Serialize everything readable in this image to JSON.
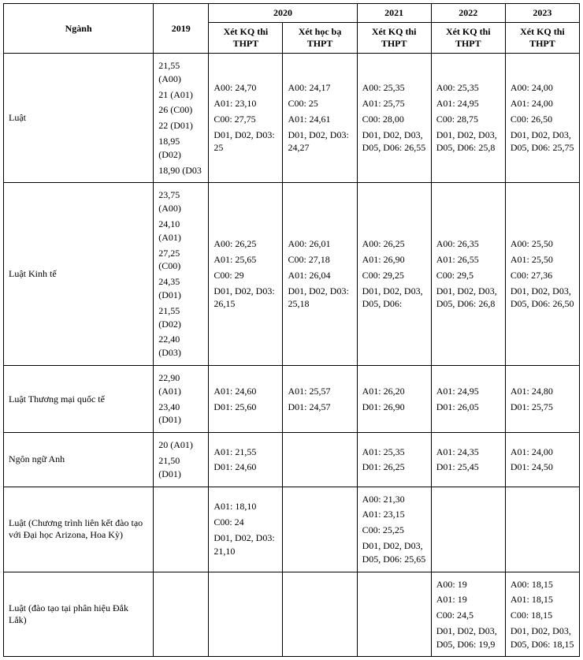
{
  "headers": {
    "nganh": "Ngành",
    "y2019": "2019",
    "y2020": "2020",
    "y2021": "2021",
    "y2022": "2022",
    "y2023": "2023",
    "xet_kq_thi": "Xét KQ thi THPT",
    "xet_hoc_ba": "Xét học bạ THPT"
  },
  "col_widths": {
    "nganh": 190,
    "y2019": 70,
    "sub": 94
  },
  "rows": [
    {
      "nganh": "Luật",
      "y2019": [
        "21,55 (A00)",
        "21 (A01)",
        "26 (C00)",
        "22 (D01)",
        "18,95 (D02)",
        "18,90 (D03"
      ],
      "y2020_kq": [
        "A00: 24,70",
        "A01: 23,10",
        "C00: 27,75",
        "D01, D02, D03: 25"
      ],
      "y2020_hb": [
        "A00: 24,17",
        "C00: 25",
        "A01: 24,61",
        "D01, D02, D03: 24,27"
      ],
      "y2021": [
        "A00: 25,35",
        "A01: 25,75",
        "C00: 28,00",
        "D01, D02, D03, D05, D06: 26,55"
      ],
      "y2022": [
        "A00: 25,35",
        "A01: 24,95",
        "C00: 28,75",
        "D01, D02, D03, D05, D06: 25,8"
      ],
      "y2023": [
        "A00: 24,00",
        "A01: 24,00",
        "C00: 26,50",
        "D01, D02, D03, D05, D06: 25,75"
      ]
    },
    {
      "nganh": "Luật Kinh tế",
      "y2019": [
        "23,75 (A00)",
        "24,10 (A01)",
        "27,25 (C00)",
        "24,35 (D01)",
        "21,55 (D02)",
        "22,40 (D03)"
      ],
      "y2020_kq": [
        "A00: 26,25",
        "A01: 25,65",
        "C00: 29",
        "D01, D02, D03: 26,15"
      ],
      "y2020_hb": [
        "A00: 26,01",
        "C00: 27,18",
        "A01: 26,04",
        "D01, D02, D03: 25,18"
      ],
      "y2021": [
        "A00: 26,25",
        "A01: 26,90",
        "C00: 29,25",
        "D01, D02, D03, D05, D06:"
      ],
      "y2022": [
        "A00: 26,35",
        "A01: 26,55",
        "C00: 29,5",
        "D01, D02, D03, D05, D06: 26,8"
      ],
      "y2023": [
        "A00: 25,50",
        "A01: 25,50",
        "C00: 27,36",
        "D01, D02, D03, D05, D06: 26,50"
      ]
    },
    {
      "nganh": "Luật Thương mại quốc tế",
      "y2019": [
        "22,90 (A01)",
        "23,40 (D01)"
      ],
      "y2020_kq": [
        "A01: 24,60",
        "D01: 25,60"
      ],
      "y2020_hb": [
        "A01: 25,57",
        "D01: 24,57"
      ],
      "y2021": [
        "A01: 26,20",
        "D01: 26,90"
      ],
      "y2022": [
        "A01: 24,95",
        "D01: 26,05"
      ],
      "y2023": [
        "A01: 24,80",
        "D01: 25,75"
      ]
    },
    {
      "nganh": "Ngôn ngữ Anh",
      "y2019": [
        "20 (A01)",
        "21,50 (D01)"
      ],
      "y2020_kq": [
        "A01: 21,55",
        "D01: 24,60"
      ],
      "y2020_hb": [],
      "y2021": [
        "A01: 25,35",
        "D01: 26,25"
      ],
      "y2022": [
        "A01: 24,35",
        "D01: 25,45"
      ],
      "y2023": [
        "A01: 24,00",
        "D01: 24,50"
      ]
    },
    {
      "nganh": "Luật  (Chương trình liên kết đào tạo với Đại học Arizona, Hoa Kỳ)",
      "y2019": [],
      "y2020_kq": [
        "A01: 18,10",
        "C00: 24",
        "D01, D02, D03: 21,10"
      ],
      "y2020_hb": [],
      "y2021": [
        "A00: 21,30",
        "A01: 23,15",
        "C00: 25,25",
        "D01, D02, D03, D05, D06: 25,65"
      ],
      "y2022": [],
      "y2023": []
    },
    {
      "nganh": "Luật (đào tạo tại phân hiệu Đắk Lắk)",
      "y2019": [],
      "y2020_kq": [],
      "y2020_hb": [],
      "y2021": [],
      "y2022": [
        "A00: 19",
        "A01: 19",
        "C00: 24,5",
        "D01, D02, D03, D05, D06: 19,9"
      ],
      "y2023": [
        "A00: 18,15",
        "A01: 18,15",
        "C00: 18,15",
        "D01, D02, D03, D05, D06: 18,15"
      ]
    }
  ]
}
